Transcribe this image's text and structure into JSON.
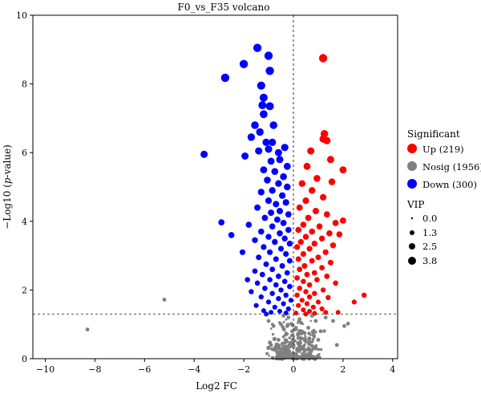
{
  "chart_data": {
    "type": "scatter",
    "title": "F0_vs_F35 volcano",
    "xlabel": "Log2 FC",
    "ylabel_prefix": "−Log10 (",
    "ylabel_italic": "p",
    "ylabel_suffix": "-value)",
    "xlim": [
      -10.5,
      4.2
    ],
    "ylim": [
      0,
      10
    ],
    "x_ticks": [
      -10,
      -8,
      -6,
      -4,
      -2,
      0,
      2,
      4
    ],
    "y_ticks": [
      0,
      2,
      4,
      6,
      8,
      10
    ],
    "x_tick_labels": [
      "−10",
      "−8",
      "−6",
      "−4",
      "−2",
      "0",
      "2",
      "4"
    ],
    "y_tick_labels": [
      "0",
      "2",
      "4",
      "6",
      "8",
      "10"
    ],
    "threshold_y": 1.3,
    "threshold_x": 0,
    "grid": false,
    "legend": {
      "placement": "right",
      "significant_title": "Significant",
      "groups": [
        {
          "key": "up",
          "label": "Up (219)",
          "color": "#ff0000"
        },
        {
          "key": "nosig",
          "label": "Nosig (1956)",
          "color": "#808080"
        },
        {
          "key": "down",
          "label": "Down (300)",
          "color": "#0000ff"
        }
      ],
      "vip_title": "VIP",
      "vip_levels": [
        "0.0",
        "1.3",
        "2.5",
        "3.8"
      ]
    },
    "series": [
      {
        "key": "down",
        "points": [
          [
            -1.45,
            9.05
          ],
          [
            -1.0,
            8.82
          ],
          [
            -2.0,
            8.58
          ],
          [
            -2.75,
            8.18
          ],
          [
            -0.95,
            8.38
          ],
          [
            -1.3,
            7.95
          ],
          [
            -1.2,
            7.6
          ],
          [
            -1.25,
            7.38
          ],
          [
            -0.95,
            7.35
          ],
          [
            -1.2,
            7.12
          ],
          [
            -0.8,
            6.8
          ],
          [
            -1.55,
            6.8
          ],
          [
            -1.7,
            6.45
          ],
          [
            -1.35,
            6.6
          ],
          [
            -1.1,
            6.3
          ],
          [
            -0.85,
            6.3
          ],
          [
            -1.0,
            6.1
          ],
          [
            -0.6,
            6.0
          ],
          [
            -0.35,
            6.15
          ],
          [
            -1.4,
            6.05
          ],
          [
            -1.95,
            5.9
          ],
          [
            -3.6,
            5.95
          ],
          [
            -0.9,
            5.75
          ],
          [
            -0.55,
            5.8
          ],
          [
            -0.25,
            5.6
          ],
          [
            -1.2,
            5.5
          ],
          [
            -0.75,
            5.45
          ],
          [
            -0.4,
            5.3
          ],
          [
            -1.05,
            5.2
          ],
          [
            -0.6,
            5.1
          ],
          [
            -0.25,
            5.0
          ],
          [
            -0.85,
            4.9
          ],
          [
            -1.3,
            4.85
          ],
          [
            -0.45,
            4.75
          ],
          [
            -1.0,
            4.6
          ],
          [
            -0.7,
            4.5
          ],
          [
            -0.3,
            4.55
          ],
          [
            -1.45,
            4.4
          ],
          [
            -0.55,
            4.3
          ],
          [
            -0.9,
            4.25
          ],
          [
            -0.2,
            4.2
          ],
          [
            -1.15,
            4.1
          ],
          [
            -0.65,
            4.05
          ],
          [
            -0.4,
            3.95
          ],
          [
            -2.9,
            3.97
          ],
          [
            -1.8,
            3.9
          ],
          [
            -0.85,
            3.85
          ],
          [
            -0.2,
            3.75
          ],
          [
            -1.3,
            3.7
          ],
          [
            -0.55,
            3.65
          ],
          [
            -1.0,
            3.55
          ],
          [
            -2.5,
            3.6
          ],
          [
            -0.35,
            3.5
          ],
          [
            -1.55,
            3.45
          ],
          [
            -0.75,
            3.4
          ],
          [
            -0.15,
            3.35
          ],
          [
            -1.2,
            3.25
          ],
          [
            -0.5,
            3.2
          ],
          [
            -0.95,
            3.1
          ],
          [
            -2.05,
            3.1
          ],
          [
            -0.3,
            3.05
          ],
          [
            -1.4,
            2.95
          ],
          [
            -0.7,
            2.9
          ],
          [
            -0.15,
            2.85
          ],
          [
            -1.1,
            2.75
          ],
          [
            -0.45,
            2.7
          ],
          [
            -0.85,
            2.6
          ],
          [
            -1.55,
            2.55
          ],
          [
            -0.25,
            2.5
          ],
          [
            -1.25,
            2.45
          ],
          [
            -0.6,
            2.4
          ],
          [
            -1.85,
            2.3
          ],
          [
            -0.95,
            2.3
          ],
          [
            -0.35,
            2.25
          ],
          [
            -1.45,
            2.2
          ],
          [
            -0.7,
            2.15
          ],
          [
            -0.15,
            2.1
          ],
          [
            -1.15,
            2.05
          ],
          [
            -0.5,
            2.0
          ],
          [
            -1.7,
            1.95
          ],
          [
            -0.85,
            1.9
          ],
          [
            -0.3,
            1.85
          ],
          [
            -1.3,
            1.8
          ],
          [
            -0.6,
            1.75
          ],
          [
            -0.1,
            1.7
          ],
          [
            -1.0,
            1.65
          ],
          [
            -0.4,
            1.6
          ],
          [
            -1.5,
            1.55
          ],
          [
            -0.75,
            1.5
          ],
          [
            -0.2,
            1.45
          ],
          [
            -1.2,
            1.4
          ],
          [
            -0.55,
            1.38
          ],
          [
            -0.9,
            1.35
          ],
          [
            -0.3,
            1.33
          ],
          [
            -1.1,
            1.3
          ]
        ]
      },
      {
        "key": "up",
        "points": [
          [
            1.2,
            8.75
          ],
          [
            1.25,
            6.55
          ],
          [
            1.35,
            6.35
          ],
          [
            1.2,
            6.4
          ],
          [
            0.7,
            6.05
          ],
          [
            1.5,
            5.8
          ],
          [
            2.0,
            5.5
          ],
          [
            0.55,
            5.6
          ],
          [
            0.95,
            5.25
          ],
          [
            1.55,
            5.15
          ],
          [
            0.35,
            5.1
          ],
          [
            0.75,
            4.9
          ],
          [
            1.2,
            4.7
          ],
          [
            0.5,
            4.6
          ],
          [
            0.25,
            4.4
          ],
          [
            0.9,
            4.3
          ],
          [
            1.35,
            4.2
          ],
          [
            0.6,
            4.1
          ],
          [
            2.0,
            4.02
          ],
          [
            1.7,
            3.95
          ],
          [
            0.4,
            3.9
          ],
          [
            1.05,
            3.85
          ],
          [
            0.2,
            3.75
          ],
          [
            0.75,
            3.7
          ],
          [
            1.45,
            3.65
          ],
          [
            1.85,
            3.62
          ],
          [
            0.5,
            3.55
          ],
          [
            1.15,
            3.5
          ],
          [
            0.3,
            3.4
          ],
          [
            0.85,
            3.35
          ],
          [
            1.6,
            3.3
          ],
          [
            0.15,
            3.25
          ],
          [
            0.65,
            3.2
          ],
          [
            1.3,
            3.1
          ],
          [
            0.4,
            3.05
          ],
          [
            1.0,
            2.95
          ],
          [
            0.2,
            2.9
          ],
          [
            0.75,
            2.85
          ],
          [
            1.5,
            2.8
          ],
          [
            0.45,
            2.7
          ],
          [
            1.15,
            2.65
          ],
          [
            0.25,
            2.6
          ],
          [
            0.85,
            2.5
          ],
          [
            0.55,
            2.45
          ],
          [
            1.35,
            2.4
          ],
          [
            0.15,
            2.35
          ],
          [
            0.95,
            2.3
          ],
          [
            0.4,
            2.25
          ],
          [
            1.7,
            2.2
          ],
          [
            0.65,
            2.15
          ],
          [
            0.25,
            2.05
          ],
          [
            1.2,
            2.0
          ],
          [
            0.5,
            1.95
          ],
          [
            0.85,
            1.9
          ],
          [
            0.15,
            1.85
          ],
          [
            0.65,
            1.8
          ],
          [
            1.4,
            1.78
          ],
          [
            0.35,
            1.7
          ],
          [
            1.0,
            1.65
          ],
          [
            0.55,
            1.6
          ],
          [
            0.2,
            1.55
          ],
          [
            0.8,
            1.5
          ],
          [
            1.15,
            1.45
          ],
          [
            0.4,
            1.42
          ],
          [
            0.65,
            1.38
          ],
          [
            1.3,
            1.35
          ],
          [
            0.1,
            1.33
          ],
          [
            0.85,
            1.32
          ],
          [
            2.85,
            1.85
          ],
          [
            2.45,
            1.65
          ],
          [
            1.8,
            1.35
          ],
          [
            0.5,
            1.3
          ]
        ]
      },
      {
        "key": "nosig",
        "points": [
          [
            -8.3,
            0.85
          ],
          [
            -5.2,
            1.72
          ],
          [
            1.6,
            1.1
          ],
          [
            2.2,
            1.02
          ],
          [
            1.75,
            0.4
          ],
          [
            2.05,
            0.95
          ],
          [
            0.9,
            1.1
          ],
          [
            -0.5,
            1.0
          ],
          [
            0.3,
            1.05
          ],
          [
            -0.2,
            1.2
          ],
          [
            0.6,
            0.9
          ],
          [
            -0.8,
            0.95
          ],
          [
            1.1,
            0.8
          ],
          [
            -0.3,
            0.7
          ],
          [
            0.2,
            0.6
          ],
          [
            0.5,
            0.5
          ],
          [
            -0.6,
            0.55
          ],
          [
            -0.1,
            0.45
          ],
          [
            0.4,
            0.35
          ],
          [
            0.15,
            0.25
          ],
          [
            -0.35,
            0.3
          ],
          [
            0.7,
            0.2
          ],
          [
            -0.5,
            0.15
          ],
          [
            0.05,
            0.1
          ],
          [
            0.3,
            0.05
          ],
          [
            -0.15,
            0.05
          ],
          [
            0.9,
            0.3
          ],
          [
            -0.9,
            0.4
          ],
          [
            0.1,
            0.9
          ],
          [
            -0.05,
            0.8
          ],
          [
            0.45,
            0.75
          ],
          [
            -0.4,
            1.25
          ],
          [
            1.3,
            1.2
          ],
          [
            0.75,
            1.25
          ],
          [
            -1.0,
            1.1
          ],
          [
            0.0,
            0.35
          ],
          [
            0.25,
            1.15
          ],
          [
            -0.25,
            0.95
          ],
          [
            1.0,
            0.55
          ],
          [
            -0.7,
            0.25
          ]
        ]
      }
    ]
  }
}
